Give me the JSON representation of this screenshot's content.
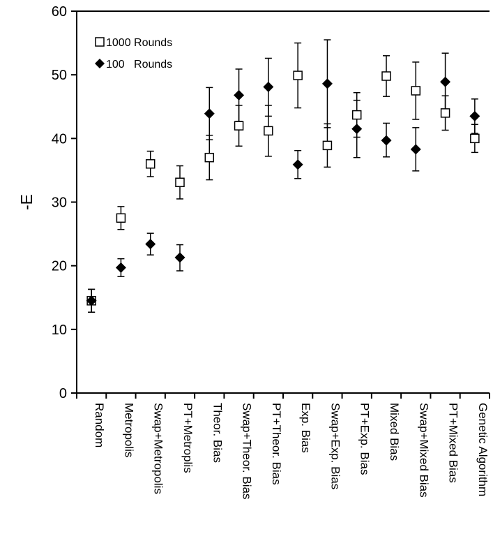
{
  "chart_data": {
    "type": "scatter",
    "title": "",
    "xlabel": "",
    "ylabel": "-E",
    "ylim": [
      0,
      60
    ],
    "yticks": [
      0,
      10,
      20,
      30,
      40,
      50,
      60
    ],
    "grid": false,
    "legend_position": "top-left",
    "categories": [
      "Random",
      "Metropolis",
      "Swap+Metropolis",
      "PT+Metroplis",
      "Theor. Bias",
      "Swap+Theor. Bias",
      "PT+Theor. Bias",
      "Exp. Bias",
      "Swap+Exp. Bias",
      "PT+Exp. Bias",
      "Mixed Bias",
      "Swap+Mixed Bias",
      "PT+Mixed Bias",
      "Genetic Algorithm"
    ],
    "series": [
      {
        "name": "1000 Rounds",
        "marker": "open-square",
        "color": "#000000",
        "values": [
          14.5,
          27.5,
          36.0,
          33.1,
          37.0,
          42.0,
          41.2,
          49.9,
          38.9,
          43.7,
          49.8,
          47.5,
          44.0,
          40.0
        ],
        "err_low": [
          12.7,
          25.7,
          34.0,
          30.5,
          33.5,
          38.8,
          37.2,
          44.8,
          35.5,
          40.2,
          46.6,
          43.0,
          41.3,
          37.8
        ],
        "err_high": [
          16.3,
          29.3,
          38.0,
          35.7,
          40.5,
          45.2,
          45.2,
          55.0,
          42.3,
          47.2,
          53.0,
          52.0,
          46.7,
          42.2
        ]
      },
      {
        "name": "100   Rounds",
        "marker": "filled-diamond",
        "color": "#000000",
        "values": [
          14.5,
          19.7,
          23.4,
          21.3,
          43.9,
          46.8,
          48.1,
          35.9,
          48.6,
          41.5,
          39.7,
          38.3,
          48.9,
          43.5
        ],
        "err_low": [
          12.7,
          18.3,
          21.7,
          19.2,
          39.8,
          42.7,
          43.5,
          33.7,
          41.7,
          37.0,
          37.1,
          34.9,
          44.4,
          40.8
        ],
        "err_high": [
          16.3,
          21.1,
          25.1,
          23.3,
          48.0,
          50.9,
          52.6,
          38.1,
          55.5,
          46.0,
          42.4,
          41.7,
          53.4,
          46.2
        ]
      }
    ]
  }
}
